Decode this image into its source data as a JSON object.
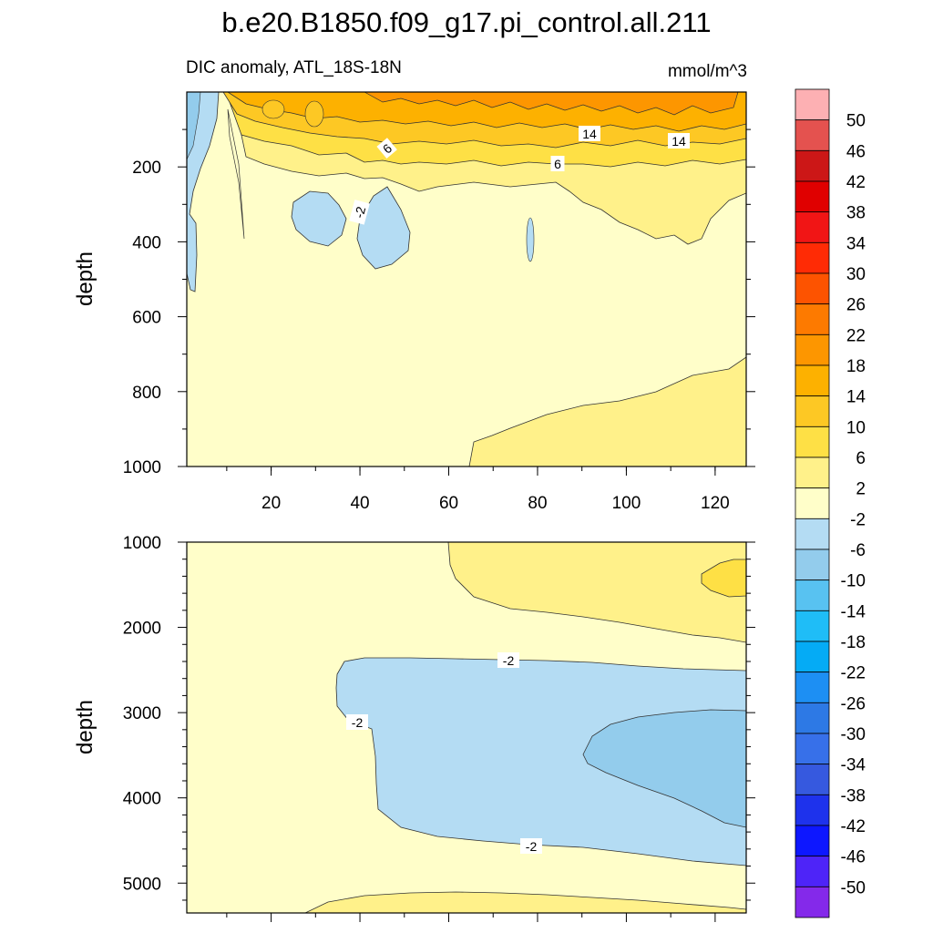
{
  "chart_data": {
    "type": "contour",
    "title": "b.e20.B1850.f09_g17.pi_control.all.211",
    "subtitle_left": "DIC anomaly, ATL_18S-18N",
    "subtitle_right": "mmol/m^3",
    "colorbar": {
      "levels": [
        50,
        46,
        42,
        38,
        34,
        30,
        26,
        22,
        18,
        14,
        10,
        6,
        2,
        -2,
        -6,
        -10,
        -14,
        -18,
        -22,
        -26,
        -30,
        -34,
        -38,
        -42,
        -46,
        -50
      ],
      "colors": [
        "#fdb0b3",
        "#e4524f",
        "#cc1717",
        "#e00000",
        "#f11515",
        "#ff2b05",
        "#fd5300",
        "#fd7a00",
        "#fd9600",
        "#fdb100",
        "#fdc824",
        "#fee045",
        "#fff18a",
        "#fffec9",
        "#b4dcf3",
        "#93ccec",
        "#58c2f1",
        "#1fbdf7",
        "#05abf5",
        "#1d8ff3",
        "#2d79e5",
        "#3770e9",
        "#3659df",
        "#1e32ec",
        "#0d17ff",
        "#4e24f8",
        "#8429ea"
      ]
    },
    "panels": [
      {
        "name": "upper",
        "x_range": [
          1,
          127
        ],
        "y_range": [
          0,
          1000
        ],
        "ylabel": "depth",
        "x_ticks": [
          20,
          40,
          60,
          80,
          100,
          120
        ],
        "y_ticks": [
          200,
          400,
          600,
          800,
          1000
        ],
        "contour_labels": [
          "6",
          "6",
          "14",
          "14",
          "-2"
        ]
      },
      {
        "name": "lower",
        "x_range": [
          1,
          127
        ],
        "y_range": [
          1000,
          5350
        ],
        "ylabel": "depth",
        "y_ticks": [
          1000,
          2000,
          3000,
          4000,
          5000
        ],
        "contour_labels": [
          "-2",
          "-2",
          "-2"
        ]
      }
    ]
  }
}
